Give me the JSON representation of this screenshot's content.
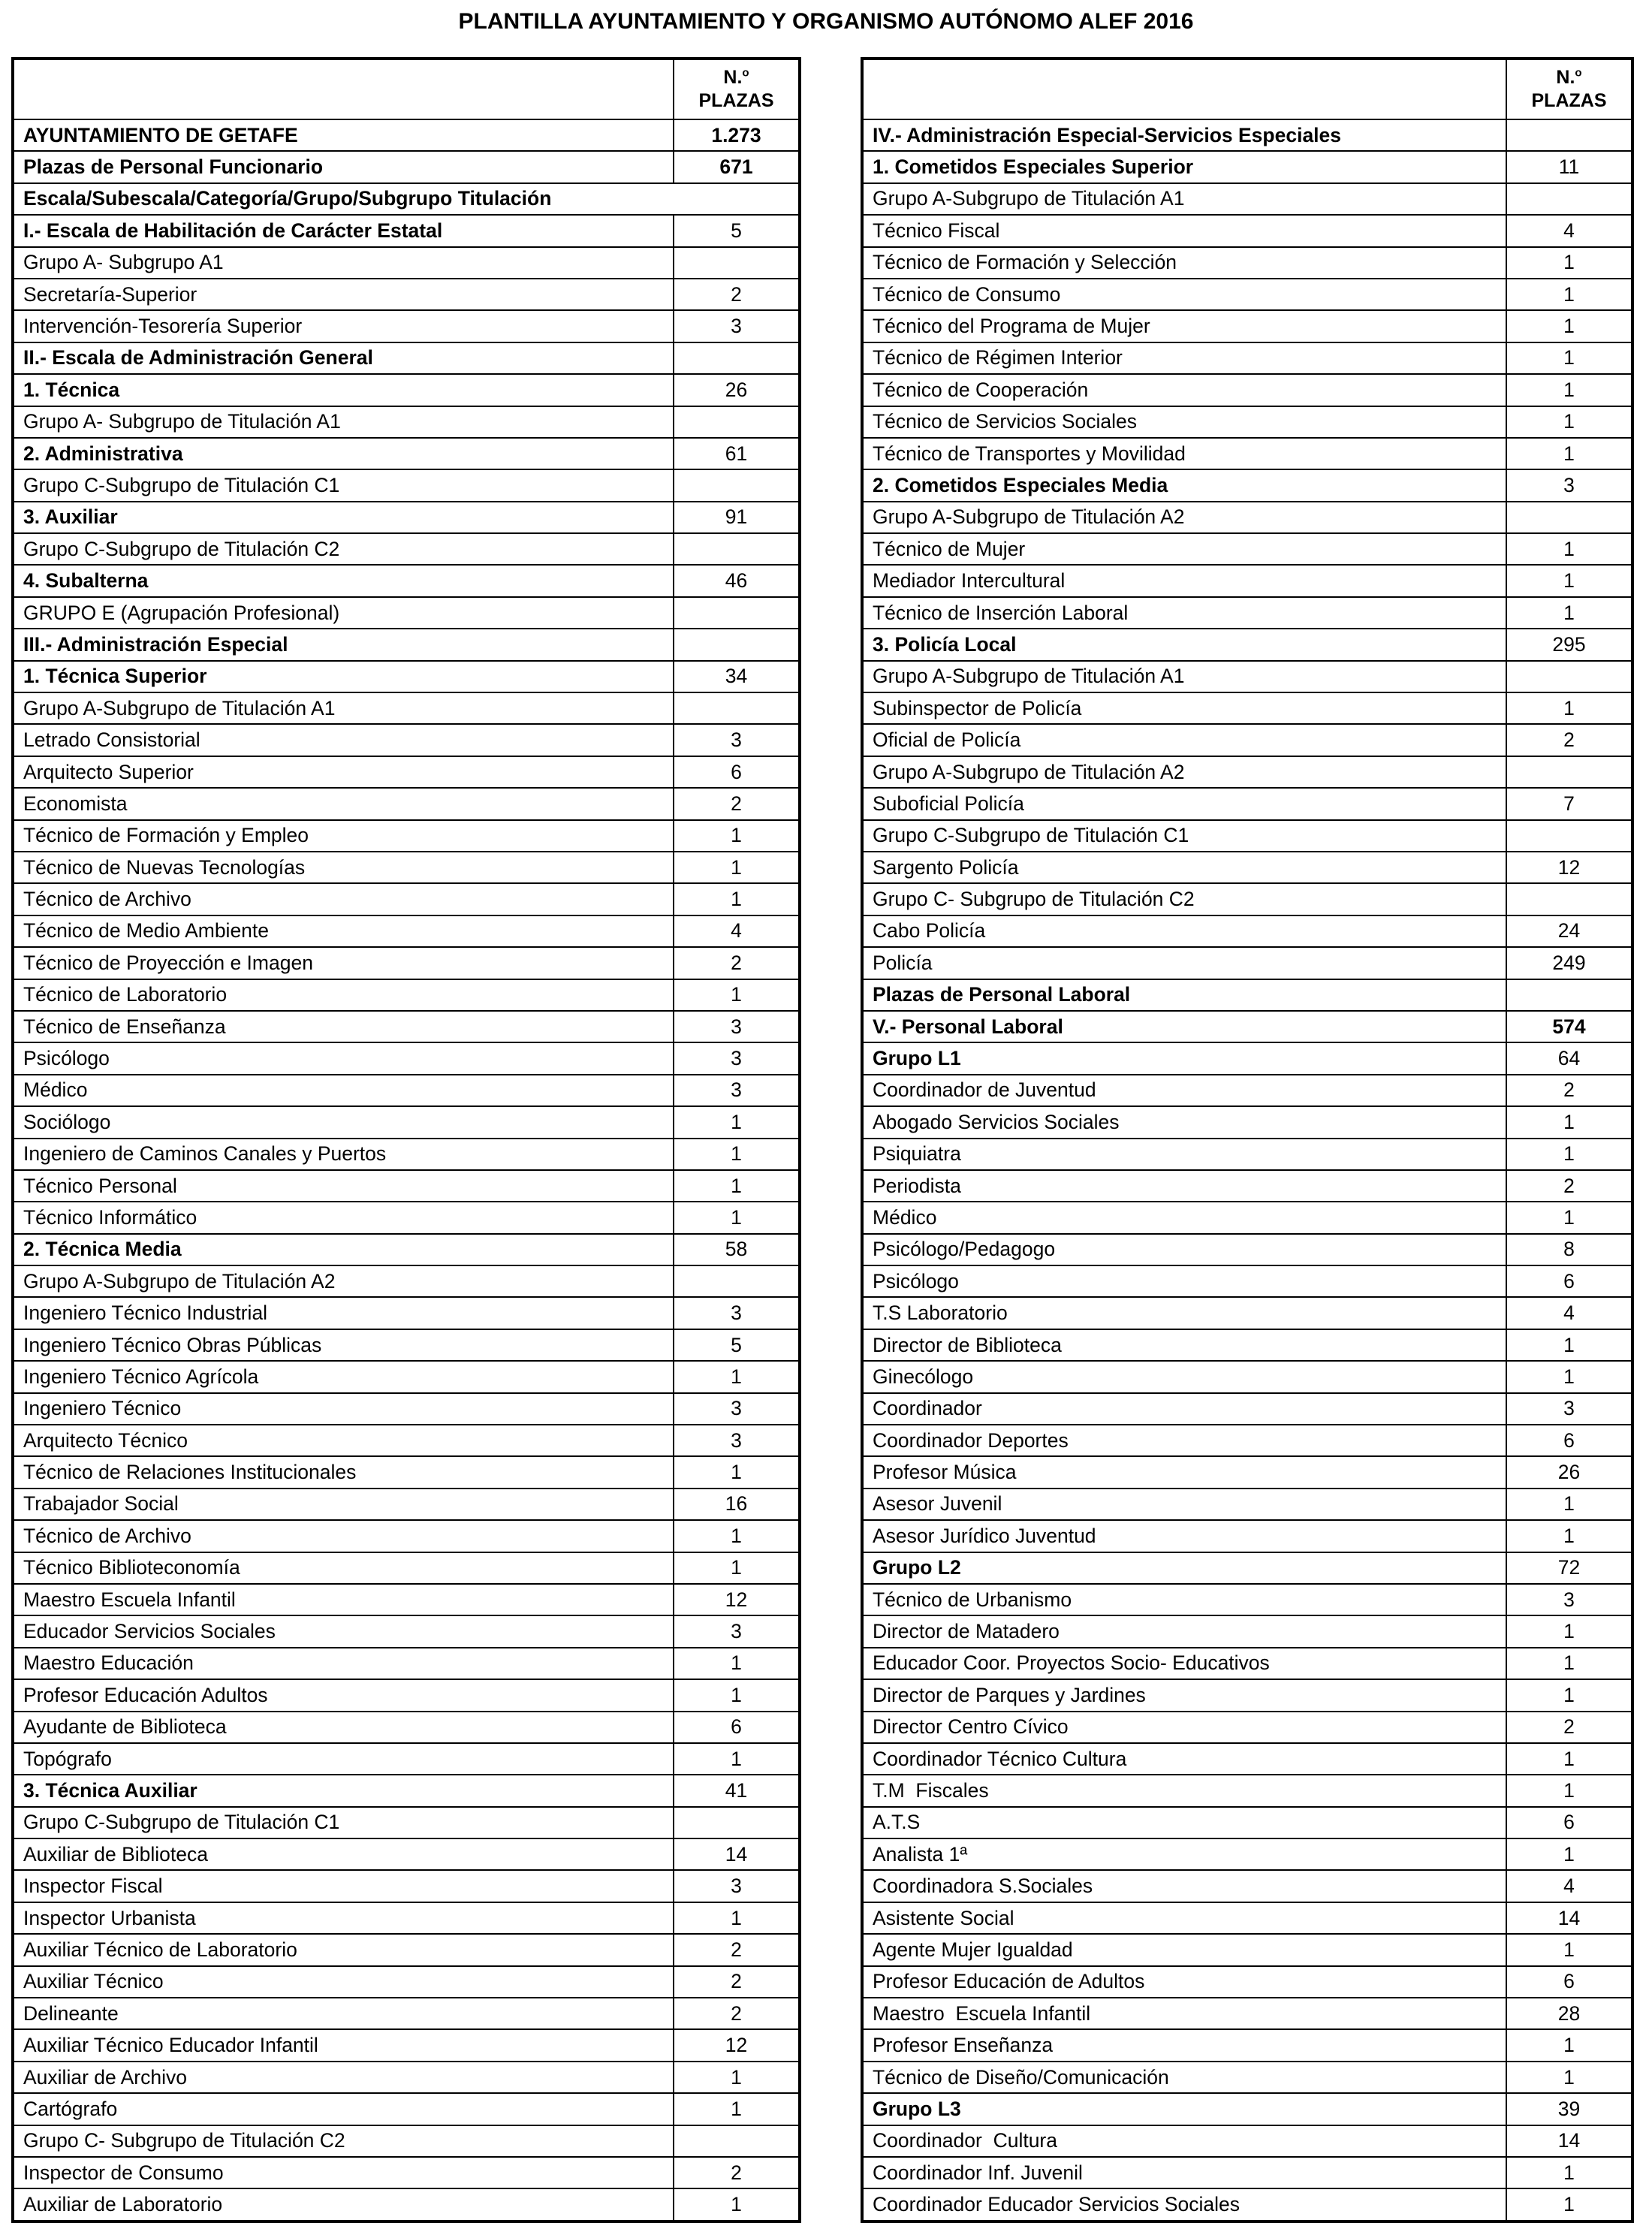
{
  "title": "PLANTILLA AYUNTAMIENTO Y ORGANISMO AUTÓNOMO ALEF 2016",
  "header": {
    "no": "N.",
    "sup": "o",
    "plazas": "PLAZAS"
  },
  "left_table": {
    "rows": [
      {
        "label": "AYUNTAMIENTO DE GETAFE",
        "value": "1.273",
        "b": true,
        "bv": true
      },
      {
        "label": "Plazas de Personal Funcionario",
        "value": "671",
        "b": true,
        "bv": true
      },
      {
        "label": "Escala/Subescala/Categoría/Grupo/Subgrupo Titulación",
        "value": "",
        "b": true,
        "m": true
      },
      {
        "label": "I.- Escala de Habilitación de Carácter Estatal",
        "value": "5",
        "b": true
      },
      {
        "label": "Grupo A- Subgrupo A1",
        "value": ""
      },
      {
        "label": "Secretaría-Superior",
        "value": "2"
      },
      {
        "label": "Intervención-Tesorería Superior",
        "value": "3"
      },
      {
        "label": "II.- Escala de Administración General",
        "value": "",
        "b": true
      },
      {
        "label": "1. Técnica",
        "value": "26",
        "b": true
      },
      {
        "label": "Grupo A- Subgrupo de Titulación A1",
        "value": ""
      },
      {
        "label": "2. Administrativa",
        "value": "61",
        "b": true
      },
      {
        "label": "Grupo C-Subgrupo de Titulación C1",
        "value": ""
      },
      {
        "label": "3. Auxiliar",
        "value": "91",
        "b": true
      },
      {
        "label": "Grupo C-Subgrupo de Titulación C2",
        "value": ""
      },
      {
        "label": "4. Subalterna",
        "value": "46",
        "b": true
      },
      {
        "label": "GRUPO E (Agrupación Profesional)",
        "value": ""
      },
      {
        "label": "III.- Administración Especial",
        "value": "",
        "b": true
      },
      {
        "label": "1. Técnica Superior",
        "value": "34",
        "b": true
      },
      {
        "label": "Grupo A-Subgrupo de Titulación A1",
        "value": ""
      },
      {
        "label": "Letrado Consistorial",
        "value": "3"
      },
      {
        "label": "Arquitecto Superior",
        "value": "6"
      },
      {
        "label": "Economista",
        "value": "2"
      },
      {
        "label": "Técnico de Formación y Empleo",
        "value": "1"
      },
      {
        "label": "Técnico de Nuevas Tecnologías",
        "value": "1"
      },
      {
        "label": "Técnico de Archivo",
        "value": "1"
      },
      {
        "label": "Técnico de Medio Ambiente",
        "value": "4"
      },
      {
        "label": "Técnico de Proyección e Imagen",
        "value": "2"
      },
      {
        "label": "Técnico de Laboratorio",
        "value": "1"
      },
      {
        "label": "Técnico de Enseñanza",
        "value": "3"
      },
      {
        "label": "Psicólogo",
        "value": "3"
      },
      {
        "label": "Médico",
        "value": "3"
      },
      {
        "label": "Sociólogo",
        "value": "1"
      },
      {
        "label": "Ingeniero de Caminos Canales y Puertos",
        "value": "1"
      },
      {
        "label": "Técnico Personal",
        "value": "1"
      },
      {
        "label": "Técnico Informático",
        "value": "1"
      },
      {
        "label": "2. Técnica Media",
        "value": "58",
        "b": true
      },
      {
        "label": "Grupo A-Subgrupo de Titulación A2",
        "value": ""
      },
      {
        "label": "Ingeniero Técnico Industrial",
        "value": "3"
      },
      {
        "label": "Ingeniero Técnico Obras Públicas",
        "value": "5"
      },
      {
        "label": "Ingeniero Técnico Agrícola",
        "value": "1"
      },
      {
        "label": "Ingeniero Técnico",
        "value": "3"
      },
      {
        "label": "Arquitecto Técnico",
        "value": "3"
      },
      {
        "label": "Técnico de Relaciones Institucionales",
        "value": "1"
      },
      {
        "label": "Trabajador Social",
        "value": "16"
      },
      {
        "label": "Técnico de Archivo",
        "value": "1"
      },
      {
        "label": "Técnico Biblioteconomía",
        "value": "1"
      },
      {
        "label": "Maestro Escuela Infantil",
        "value": "12"
      },
      {
        "label": "Educador Servicios Sociales",
        "value": "3"
      },
      {
        "label": "Maestro Educación",
        "value": "1"
      },
      {
        "label": "Profesor Educación Adultos",
        "value": "1"
      },
      {
        "label": "Ayudante de Biblioteca",
        "value": "6"
      },
      {
        "label": "Topógrafo",
        "value": "1"
      },
      {
        "label": "3. Técnica Auxiliar",
        "value": "41",
        "b": true
      },
      {
        "label": "Grupo C-Subgrupo de Titulación C1",
        "value": ""
      },
      {
        "label": "Auxiliar de Biblioteca",
        "value": "14"
      },
      {
        "label": "Inspector Fiscal",
        "value": "3"
      },
      {
        "label": "Inspector Urbanista",
        "value": "1"
      },
      {
        "label": "Auxiliar Técnico de Laboratorio",
        "value": "2"
      },
      {
        "label": "Auxiliar Técnico",
        "value": "2"
      },
      {
        "label": "Delineante",
        "value": "2"
      },
      {
        "label": "Auxiliar Técnico Educador Infantil",
        "value": "12"
      },
      {
        "label": "Auxiliar de Archivo",
        "value": "1"
      },
      {
        "label": "Cartógrafo",
        "value": "1"
      },
      {
        "label": "Grupo C- Subgrupo de Titulación C2",
        "value": ""
      },
      {
        "label": "Inspector de Consumo",
        "value": "2"
      },
      {
        "label": "Auxiliar de Laboratorio",
        "value": "1"
      }
    ]
  },
  "right_table": {
    "rows": [
      {
        "label": "IV.- Administración Especial-Servicios Especiales",
        "value": "",
        "b": true
      },
      {
        "label": "1. Cometidos Especiales Superior",
        "value": "11",
        "b": true
      },
      {
        "label": "Grupo A-Subgrupo de Titulación A1",
        "value": ""
      },
      {
        "label": "Técnico Fiscal",
        "value": "4"
      },
      {
        "label": "Técnico de Formación y Selección",
        "value": "1"
      },
      {
        "label": "Técnico de Consumo",
        "value": "1"
      },
      {
        "label": "Técnico del Programa de Mujer",
        "value": "1"
      },
      {
        "label": "Técnico de Régimen Interior",
        "value": "1"
      },
      {
        "label": "Técnico de Cooperación",
        "value": "1"
      },
      {
        "label": "Técnico de Servicios Sociales",
        "value": "1"
      },
      {
        "label": "Técnico de Transportes y Movilidad",
        "value": "1"
      },
      {
        "label": "2. Cometidos Especiales Media",
        "value": "3",
        "b": true
      },
      {
        "label": "Grupo A-Subgrupo de Titulación A2",
        "value": ""
      },
      {
        "label": "Técnico de Mujer",
        "value": "1"
      },
      {
        "label": "Mediador Intercultural",
        "value": "1"
      },
      {
        "label": "Técnico de Inserción Laboral",
        "value": "1"
      },
      {
        "label": "3. Policía Local",
        "value": "295",
        "b": true
      },
      {
        "label": "Grupo A-Subgrupo de Titulación A1",
        "value": ""
      },
      {
        "label": "Subinspector de Policía",
        "value": "1"
      },
      {
        "label": "Oficial de Policía",
        "value": "2"
      },
      {
        "label": "Grupo A-Subgrupo de Titulación A2",
        "value": ""
      },
      {
        "label": "Suboficial Policía",
        "value": "7"
      },
      {
        "label": "Grupo C-Subgrupo de Titulación C1",
        "value": ""
      },
      {
        "label": "Sargento Policía",
        "value": "12"
      },
      {
        "label": "Grupo C- Subgrupo de Titulación C2",
        "value": ""
      },
      {
        "label": "Cabo Policía",
        "value": "24"
      },
      {
        "label": "Policía",
        "value": "249"
      },
      {
        "label": "Plazas de Personal Laboral",
        "value": "",
        "b": true
      },
      {
        "label": "V.- Personal Laboral",
        "value": "574",
        "b": true,
        "bv": true
      },
      {
        "label": "Grupo L1",
        "value": "64",
        "b": true
      },
      {
        "label": "Coordinador de Juventud",
        "value": "2"
      },
      {
        "label": "Abogado Servicios Sociales",
        "value": "1"
      },
      {
        "label": "Psiquiatra",
        "value": "1"
      },
      {
        "label": "Periodista",
        "value": "2"
      },
      {
        "label": "Médico",
        "value": "1"
      },
      {
        "label": "Psicólogo/Pedagogo",
        "value": "8"
      },
      {
        "label": "Psicólogo",
        "value": "6"
      },
      {
        "label": "T.S Laboratorio",
        "value": "4"
      },
      {
        "label": "Director de Biblioteca",
        "value": "1"
      },
      {
        "label": "Ginecólogo",
        "value": "1"
      },
      {
        "label": "Coordinador",
        "value": "3"
      },
      {
        "label": "Coordinador Deportes",
        "value": "6"
      },
      {
        "label": "Profesor Música",
        "value": "26"
      },
      {
        "label": "Asesor Juvenil",
        "value": "1"
      },
      {
        "label": "Asesor Jurídico Juventud",
        "value": "1"
      },
      {
        "label": "Grupo L2",
        "value": "72",
        "b": true
      },
      {
        "label": "Técnico de Urbanismo",
        "value": "3"
      },
      {
        "label": "Director de Matadero",
        "value": "1"
      },
      {
        "label": "Educador Coor. Proyectos Socio- Educativos",
        "value": "1"
      },
      {
        "label": "Director de Parques y Jardines",
        "value": "1"
      },
      {
        "label": "Director Centro Cívico",
        "value": "2"
      },
      {
        "label": "Coordinador Técnico Cultura",
        "value": "1"
      },
      {
        "label": "T.M  Fiscales",
        "value": "1"
      },
      {
        "label": "A.T.S",
        "value": "6"
      },
      {
        "label": "Analista 1ª",
        "value": "1"
      },
      {
        "label": "Coordinadora S.Sociales",
        "value": "4"
      },
      {
        "label": "Asistente Social",
        "value": "14"
      },
      {
        "label": "Agente Mujer Igualdad",
        "value": "1"
      },
      {
        "label": "Profesor Educación de Adultos",
        "value": "6"
      },
      {
        "label": "Maestro  Escuela Infantil",
        "value": "28"
      },
      {
        "label": "Profesor Enseñanza",
        "value": "1"
      },
      {
        "label": "Técnico de Diseño/Comunicación",
        "value": "1"
      },
      {
        "label": "Grupo L3",
        "value": "39",
        "b": true
      },
      {
        "label": "Coordinador  Cultura",
        "value": "14"
      },
      {
        "label": "Coordinador Inf. Juvenil",
        "value": "1"
      },
      {
        "label": "Coordinador Educador Servicios Sociales",
        "value": "1"
      }
    ]
  }
}
